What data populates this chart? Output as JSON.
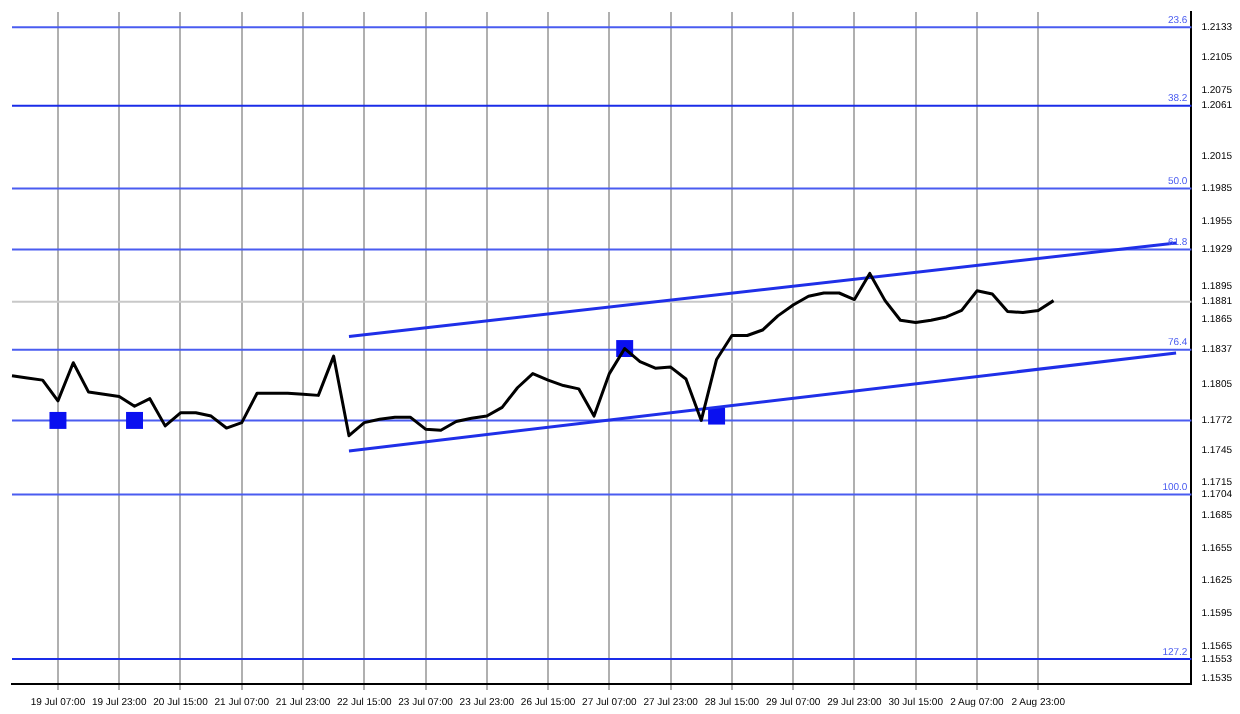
{
  "chart_data": {
    "type": "line",
    "legend": false,
    "grid": "x",
    "ylim": [
      1.153,
      1.2147
    ],
    "categories": [
      null,
      null,
      null,
      "19 Jul 07:00",
      null,
      null,
      null,
      "19 Jul 23:00",
      null,
      null,
      null,
      "20 Jul 15:00",
      null,
      null,
      null,
      "21 Jul 07:00",
      null,
      null,
      null,
      "21 Jul 23:00",
      null,
      null,
      null,
      "22 Jul 15:00",
      null,
      null,
      null,
      "23 Jul 07:00",
      null,
      null,
      null,
      "23 Jul 23:00",
      null,
      null,
      null,
      "26 Jul 15:00",
      null,
      null,
      null,
      "27 Jul 07:00",
      null,
      null,
      null,
      "27 Jul 23:00",
      null,
      null,
      null,
      "28 Jul 15:00",
      null,
      null,
      null,
      "29 Jul 07:00",
      null,
      null,
      null,
      "29 Jul 23:00",
      null,
      null,
      null,
      "30 Jul 15:00",
      null,
      null,
      null,
      "2 Aug 07:00",
      null,
      null,
      null,
      "2 Aug 23:00",
      null,
      null,
      null,
      null,
      null,
      null,
      null,
      null,
      null,
      null
    ],
    "yticks": [
      1.2133,
      1.2105,
      1.2075,
      1.2061,
      1.2015,
      1.1985,
      1.1955,
      1.1929,
      1.1895,
      1.1881,
      1.1865,
      1.1837,
      1.1805,
      1.1772,
      1.1745,
      1.1715,
      1.1704,
      1.1685,
      1.1655,
      1.1625,
      1.1595,
      1.1565,
      1.1553,
      1.1535
    ],
    "ref_lines": [
      {
        "axis": "y",
        "value": 1.2133,
        "color": "#4a5cf0"
      },
      {
        "axis": "y",
        "value": 1.2061,
        "color": "#1a2ce8"
      },
      {
        "axis": "y",
        "value": 1.1985,
        "color": "#4a5cf0"
      },
      {
        "axis": "y",
        "value": 1.1929,
        "color": "#4a5cf0"
      },
      {
        "axis": "y",
        "value": 1.1881,
        "color": "#c8c8c8"
      },
      {
        "axis": "y",
        "value": 1.1837,
        "color": "#4a5cf0"
      },
      {
        "axis": "y",
        "value": 1.1772,
        "color": "#4a5cf0"
      },
      {
        "axis": "y",
        "value": 1.1704,
        "color": "#4a5cf0"
      },
      {
        "axis": "y",
        "value": 1.1553,
        "color": "#1a2ce8"
      }
    ],
    "annotations": [
      {
        "text": "23.6",
        "y": 1.2133
      },
      {
        "text": "38.2",
        "y": 1.2061
      },
      {
        "text": "50.0",
        "y": 1.1985
      },
      {
        "text": "61.8",
        "y": 1.1929
      },
      {
        "text": "76.4",
        "y": 1.1837
      },
      {
        "text": "100.0",
        "y": 1.1704
      },
      {
        "text": "127.2",
        "y": 1.1553
      }
    ],
    "series": [
      {
        "color": "#000000",
        "marker": "none",
        "values": [
          1.1813,
          1.1811,
          1.1809,
          1.179,
          1.1825,
          1.1798,
          1.1796,
          1.1794,
          1.1785,
          1.1792,
          1.1767,
          1.1779,
          1.1779,
          1.1776,
          1.1765,
          1.177,
          1.1797,
          1.1797,
          1.1797,
          1.1796,
          1.1795,
          1.1831,
          1.1758,
          1.177,
          1.1773,
          1.1775,
          1.1775,
          1.1764,
          1.1763,
          1.1771,
          1.1774,
          1.1776,
          1.1784,
          1.1802,
          1.1815,
          1.1809,
          1.1804,
          1.1801,
          1.1776,
          1.1815,
          1.1838,
          1.1826,
          1.182,
          1.1821,
          1.181,
          1.1772,
          1.1828,
          1.185,
          1.185,
          1.1855,
          1.1868,
          1.1878,
          1.1886,
          1.1889,
          1.1889,
          1.1883,
          1.1907,
          1.1882,
          1.1864,
          1.1862,
          1.1864,
          1.1867,
          1.1873,
          1.1891,
          1.1888,
          1.1872,
          1.1871,
          1.1873,
          1.1882,
          null,
          null,
          null,
          null,
          null,
          null,
          null,
          null,
          null
        ]
      },
      {
        "type": "line",
        "color": "#1f2fe8",
        "marker": "none",
        "values": [
          null,
          null,
          null,
          null,
          null,
          null,
          null,
          null,
          null,
          null,
          null,
          null,
          null,
          null,
          null,
          null,
          null,
          null,
          null,
          null,
          null,
          null,
          1.1849,
          null,
          null,
          null,
          null,
          null,
          null,
          null,
          null,
          null,
          null,
          null,
          null,
          null,
          null,
          null,
          null,
          null,
          null,
          null,
          null,
          null,
          null,
          null,
          null,
          null,
          null,
          null,
          null,
          null,
          null,
          null,
          null,
          null,
          null,
          null,
          null,
          null,
          null,
          null,
          null,
          null,
          null,
          null,
          null,
          null,
          null,
          null,
          null,
          null,
          null,
          null,
          null,
          null,
          1.1935,
          null
        ]
      },
      {
        "type": "line",
        "color": "#1f2fe8",
        "marker": "none",
        "values": [
          null,
          null,
          null,
          null,
          null,
          null,
          null,
          null,
          null,
          null,
          null,
          null,
          null,
          null,
          null,
          null,
          null,
          null,
          null,
          null,
          null,
          null,
          1.1744,
          null,
          null,
          null,
          null,
          null,
          null,
          null,
          null,
          null,
          null,
          null,
          null,
          null,
          null,
          null,
          null,
          null,
          null,
          null,
          null,
          null,
          null,
          null,
          null,
          null,
          null,
          null,
          null,
          null,
          null,
          null,
          null,
          null,
          null,
          null,
          null,
          null,
          null,
          null,
          null,
          null,
          null,
          null,
          null,
          null,
          null,
          null,
          null,
          null,
          null,
          null,
          null,
          null,
          1.1834,
          null
        ]
      },
      {
        "type": "scatter",
        "color": "#0a10f0",
        "marker": "square",
        "values": [
          null,
          null,
          null,
          1.1772,
          null,
          null,
          null,
          null,
          1.1772,
          null,
          null,
          null,
          null,
          null,
          null,
          null,
          null,
          null,
          null,
          null,
          null,
          null,
          null,
          null,
          null,
          null,
          null,
          null,
          null,
          null,
          null,
          null,
          null,
          null,
          null,
          null,
          null,
          null,
          null,
          null,
          1.1838,
          null,
          null,
          null,
          null,
          null,
          1.1776,
          null,
          null,
          null,
          null,
          null,
          null,
          null,
          null,
          null,
          null,
          null,
          null,
          null,
          null,
          null,
          null,
          null,
          null,
          null,
          null,
          null,
          null,
          null,
          null,
          null,
          null,
          null,
          null,
          null,
          null,
          null
        ]
      }
    ]
  }
}
